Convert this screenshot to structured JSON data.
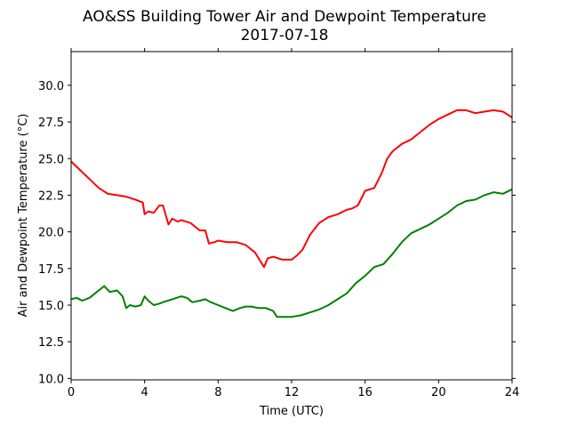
{
  "chart_data": {
    "type": "line",
    "title": "AO&SS Building Tower Air and Dewpoint Temperature",
    "subtitle": "2017-07-18",
    "xlabel": "Time (UTC)",
    "ylabel": "Air and Dewpoint Temperature (°C)",
    "xlim": [
      0,
      24
    ],
    "ylim": [
      9.9,
      32.3
    ],
    "xticks": [
      0,
      4,
      8,
      12,
      16,
      20,
      24
    ],
    "yticks": [
      10.0,
      12.5,
      15.0,
      17.5,
      20.0,
      22.5,
      25.0,
      27.5,
      30.0
    ],
    "grid": false,
    "series": [
      {
        "color": "#ff0000",
        "x": [
          0,
          0.25,
          0.5,
          1.0,
          1.5,
          2.0,
          2.5,
          3.0,
          3.5,
          3.9,
          4.0,
          4.2,
          4.5,
          4.8,
          5.0,
          5.3,
          5.5,
          5.8,
          6.0,
          6.5,
          7.0,
          7.3,
          7.5,
          7.8,
          8.0,
          8.5,
          9.0,
          9.5,
          10.0,
          10.3,
          10.5,
          10.7,
          11.0,
          11.5,
          12.0,
          12.3,
          12.6,
          13.0,
          13.5,
          14.0,
          14.5,
          15.0,
          15.3,
          15.6,
          16.0,
          16.5,
          16.9,
          17.2,
          17.5,
          18.0,
          18.5,
          19.0,
          19.5,
          20.0,
          20.5,
          21.0,
          21.5,
          22.0,
          22.5,
          23.0,
          23.5,
          24.0
        ],
        "y": [
          24.8,
          24.5,
          24.2,
          23.6,
          23.0,
          22.6,
          22.5,
          22.4,
          22.2,
          22.0,
          21.2,
          21.4,
          21.3,
          21.8,
          21.8,
          20.5,
          20.9,
          20.7,
          20.8,
          20.6,
          20.1,
          20.1,
          19.2,
          19.3,
          19.4,
          19.3,
          19.3,
          19.1,
          18.6,
          18.0,
          17.6,
          18.2,
          18.3,
          18.1,
          18.1,
          18.4,
          18.8,
          19.8,
          20.6,
          21.0,
          21.2,
          21.5,
          21.6,
          21.8,
          22.8,
          23.0,
          24.0,
          25.0,
          25.5,
          26.0,
          26.3,
          26.8,
          27.3,
          27.7,
          28.0,
          28.3,
          28.3,
          28.1,
          28.2,
          28.3,
          28.2,
          27.8
        ]
      },
      {
        "color": "#008000",
        "x": [
          0,
          0.3,
          0.6,
          1.0,
          1.3,
          1.6,
          1.8,
          2.1,
          2.5,
          2.8,
          3.0,
          3.2,
          3.5,
          3.8,
          4.0,
          4.2,
          4.5,
          4.8,
          5.0,
          5.5,
          6.0,
          6.3,
          6.6,
          7.0,
          7.3,
          7.6,
          8.0,
          8.4,
          8.8,
          9.2,
          9.5,
          9.8,
          10.2,
          10.6,
          11.0,
          11.2,
          11.5,
          12.0,
          12.5,
          13.0,
          13.5,
          14.0,
          14.5,
          15.0,
          15.5,
          16.0,
          16.5,
          17.0,
          17.5,
          18.0,
          18.5,
          19.0,
          19.5,
          20.0,
          20.5,
          21.0,
          21.5,
          22.0,
          22.5,
          23.0,
          23.5,
          24.0
        ],
        "y": [
          15.4,
          15.5,
          15.3,
          15.5,
          15.8,
          16.1,
          16.3,
          15.9,
          16.0,
          15.6,
          14.8,
          15.0,
          14.9,
          15.0,
          15.6,
          15.3,
          15.0,
          15.1,
          15.2,
          15.4,
          15.6,
          15.5,
          15.2,
          15.3,
          15.4,
          15.2,
          15.0,
          14.8,
          14.6,
          14.8,
          14.9,
          14.9,
          14.8,
          14.8,
          14.6,
          14.2,
          14.2,
          14.2,
          14.3,
          14.5,
          14.7,
          15.0,
          15.4,
          15.8,
          16.5,
          17.0,
          17.6,
          17.8,
          18.5,
          19.3,
          19.9,
          20.2,
          20.5,
          20.9,
          21.3,
          21.8,
          22.1,
          22.2,
          22.5,
          22.7,
          22.6,
          22.9
        ]
      }
    ]
  }
}
